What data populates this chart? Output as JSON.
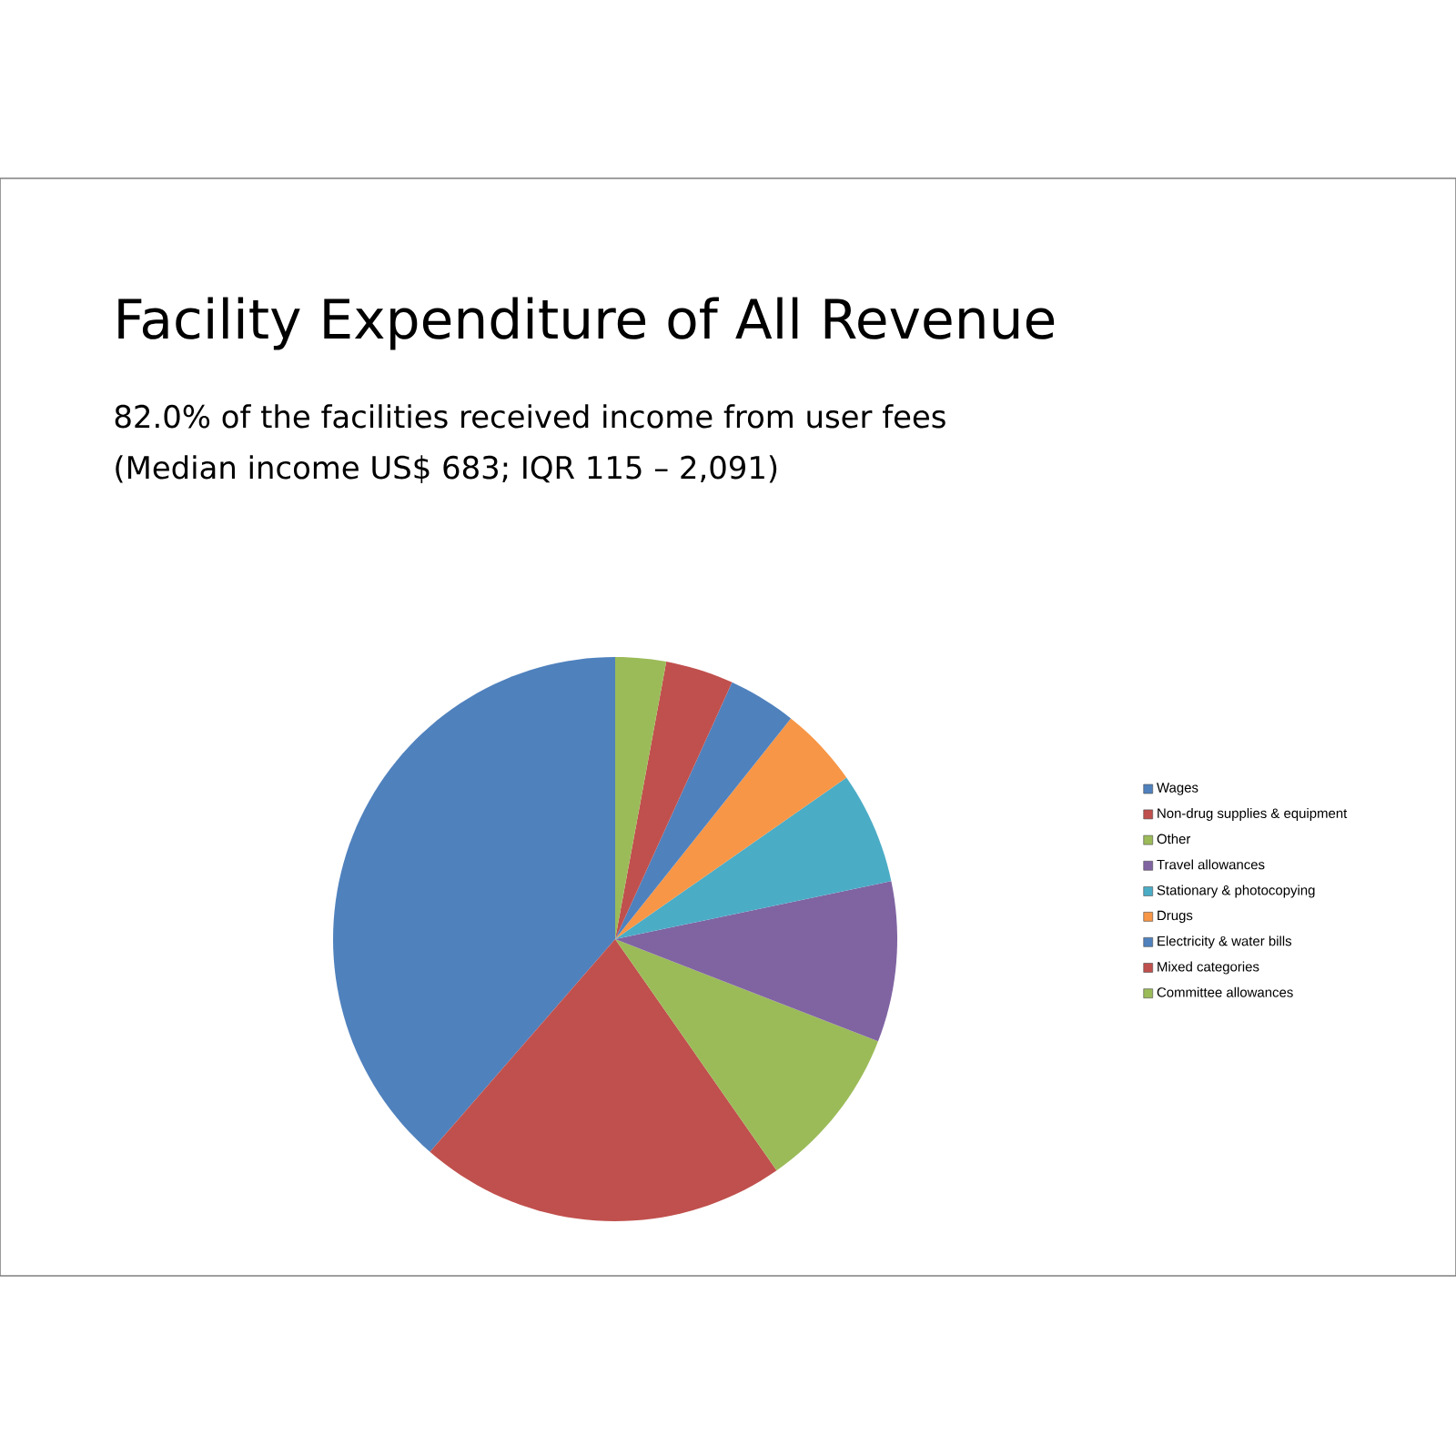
{
  "chart_data": {
    "type": "pie",
    "title": "Facility Expenditure of All Revenue",
    "subtitle": "82.0% of the facilities received income from user fees",
    "annotations": [
      "(Median income US$ 683; IQR 115 – 2,091)"
    ],
    "categories": [
      "Wages",
      "Non-drug supplies & equipment",
      "Other",
      "Travel allowances",
      "Stationary & photocopying",
      "Drugs",
      "Electricity & water bills",
      "Mixed categories",
      "Committee allowances"
    ],
    "values": [
      38.6,
      21.1,
      9.4,
      9.2,
      6.4,
      4.6,
      3.9,
      3.9,
      2.9
    ],
    "colors": [
      "#4f81bd",
      "#c0504d",
      "#9bbb59",
      "#8064a2",
      "#4bacc6",
      "#f79646",
      "#4f81bd",
      "#c0504d",
      "#9bbb59"
    ],
    "legend": "right"
  }
}
